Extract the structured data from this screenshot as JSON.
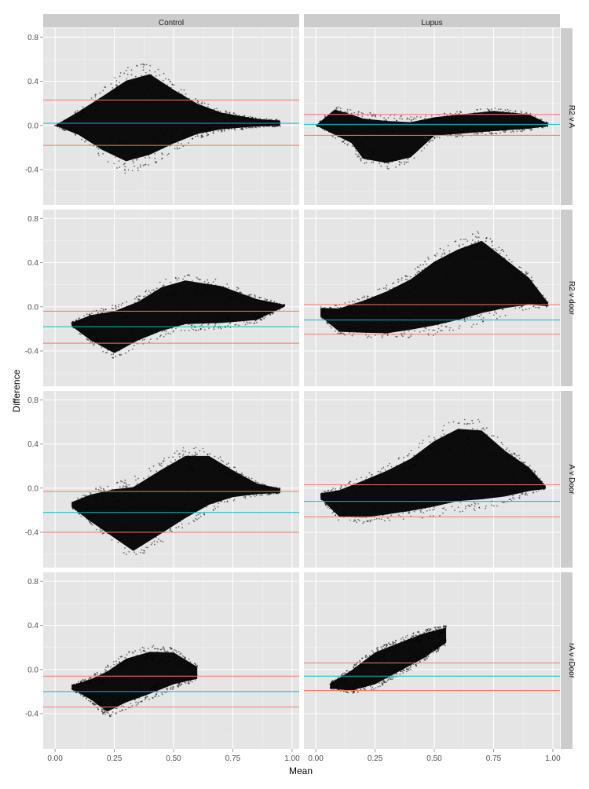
{
  "chart_data": {
    "type": "scatter",
    "xlabel": "Mean",
    "ylabel": "Difference",
    "facet_columns": [
      "Control",
      "Lupus"
    ],
    "facet_rows": [
      "R2 v A",
      "R2 v door",
      "A v Door",
      "rA v rDoor"
    ],
    "xlim": [
      -0.05,
      1.03
    ],
    "ylim": [
      -0.72,
      0.88
    ],
    "x_ticks": [
      0,
      0.25,
      0.5,
      0.75,
      1
    ],
    "x_tick_labels": [
      "0.00",
      "0.25",
      "0.50",
      "0.75",
      "1.00"
    ],
    "y_ticks": [
      -0.4,
      0,
      0.4,
      0.8
    ],
    "y_tick_labels": [
      "-0.4",
      "0.0",
      "0.4",
      "0.8"
    ],
    "colors": {
      "panel_bg": "#e5e5e5",
      "strip_bg": "#cccccc",
      "points": "#000000",
      "mean_line": "#00bfc4",
      "limit_lines": "#f8766d"
    },
    "grid": true,
    "legend": "none",
    "panels": [
      {
        "column": "Control",
        "row": "R2 v A",
        "mean_difference": 0.02,
        "lower_limit": -0.18,
        "upper_limit": 0.23,
        "cloud": [
          [
            0.0,
            0.0,
            0.0
          ],
          [
            0.1,
            0.16,
            -0.12
          ],
          [
            0.2,
            0.34,
            -0.3
          ],
          [
            0.3,
            0.52,
            -0.44
          ],
          [
            0.4,
            0.58,
            -0.38
          ],
          [
            0.5,
            0.4,
            -0.24
          ],
          [
            0.6,
            0.24,
            -0.12
          ],
          [
            0.7,
            0.14,
            -0.06
          ],
          [
            0.85,
            0.07,
            -0.02
          ],
          [
            0.95,
            0.05,
            -0.01
          ]
        ]
      },
      {
        "column": "Lupus",
        "row": "R2 v A",
        "mean_difference": 0.01,
        "lower_limit": -0.09,
        "upper_limit": 0.1,
        "cloud": [
          [
            0.0,
            0.0,
            0.0
          ],
          [
            0.08,
            0.18,
            -0.12
          ],
          [
            0.15,
            0.14,
            -0.2
          ],
          [
            0.2,
            0.12,
            -0.36
          ],
          [
            0.3,
            0.1,
            -0.4
          ],
          [
            0.4,
            0.08,
            -0.34
          ],
          [
            0.5,
            0.1,
            -0.12
          ],
          [
            0.75,
            0.16,
            -0.08
          ],
          [
            0.9,
            0.12,
            -0.05
          ],
          [
            0.98,
            0.02,
            -0.01
          ]
        ]
      },
      {
        "column": "Control",
        "row": "R2 v door",
        "mean_difference": -0.18,
        "lower_limit": -0.33,
        "upper_limit": -0.04,
        "cloud": [
          [
            0.07,
            -0.14,
            -0.18
          ],
          [
            0.15,
            -0.04,
            -0.34
          ],
          [
            0.25,
            0.02,
            -0.48
          ],
          [
            0.35,
            0.1,
            -0.36
          ],
          [
            0.45,
            0.24,
            -0.28
          ],
          [
            0.55,
            0.3,
            -0.22
          ],
          [
            0.7,
            0.24,
            -0.2
          ],
          [
            0.85,
            0.1,
            -0.15
          ],
          [
            0.97,
            0.02,
            0.0
          ]
        ]
      },
      {
        "column": "Lupus",
        "row": "R2 v door",
        "mean_difference": -0.12,
        "lower_limit": -0.25,
        "upper_limit": 0.02,
        "cloud": [
          [
            0.02,
            0.0,
            -0.1
          ],
          [
            0.1,
            0.02,
            -0.26
          ],
          [
            0.2,
            0.1,
            -0.28
          ],
          [
            0.3,
            0.2,
            -0.3
          ],
          [
            0.4,
            0.32,
            -0.28
          ],
          [
            0.5,
            0.5,
            -0.26
          ],
          [
            0.6,
            0.62,
            -0.22
          ],
          [
            0.7,
            0.7,
            -0.16
          ],
          [
            0.8,
            0.5,
            -0.08
          ],
          [
            0.9,
            0.3,
            -0.02
          ],
          [
            0.98,
            0.04,
            0.0
          ]
        ]
      },
      {
        "column": "Control",
        "row": "A v Door",
        "mean_difference": -0.22,
        "lower_limit": -0.4,
        "upper_limit": -0.03,
        "cloud": [
          [
            0.07,
            -0.12,
            -0.18
          ],
          [
            0.15,
            -0.02,
            -0.34
          ],
          [
            0.25,
            0.06,
            -0.52
          ],
          [
            0.33,
            0.1,
            -0.66
          ],
          [
            0.45,
            0.26,
            -0.5
          ],
          [
            0.55,
            0.38,
            -0.36
          ],
          [
            0.65,
            0.36,
            -0.22
          ],
          [
            0.75,
            0.2,
            -0.12
          ],
          [
            0.85,
            0.06,
            -0.07
          ],
          [
            0.95,
            0.0,
            -0.05
          ]
        ]
      },
      {
        "column": "Lupus",
        "row": "A v Door",
        "mean_difference": -0.12,
        "lower_limit": -0.26,
        "upper_limit": 0.03,
        "cloud": [
          [
            0.02,
            -0.04,
            -0.1
          ],
          [
            0.1,
            0.02,
            -0.3
          ],
          [
            0.2,
            0.12,
            -0.32
          ],
          [
            0.3,
            0.22,
            -0.3
          ],
          [
            0.4,
            0.34,
            -0.28
          ],
          [
            0.5,
            0.52,
            -0.26
          ],
          [
            0.6,
            0.64,
            -0.22
          ],
          [
            0.7,
            0.62,
            -0.2
          ],
          [
            0.8,
            0.4,
            -0.14
          ],
          [
            0.9,
            0.22,
            -0.06
          ],
          [
            0.97,
            0.02,
            -0.01
          ]
        ]
      },
      {
        "column": "Control",
        "row": "rA v rDoor",
        "mean_difference": -0.2,
        "lower_limit": -0.34,
        "upper_limit": -0.06,
        "cloud": [
          [
            0.07,
            -0.14,
            -0.18
          ],
          [
            0.15,
            -0.06,
            -0.3
          ],
          [
            0.22,
            0.04,
            -0.44
          ],
          [
            0.3,
            0.16,
            -0.36
          ],
          [
            0.4,
            0.22,
            -0.28
          ],
          [
            0.5,
            0.2,
            -0.18
          ],
          [
            0.6,
            0.04,
            -0.1
          ]
        ]
      },
      {
        "column": "Lupus",
        "row": "rA v rDoor",
        "mean_difference": -0.06,
        "lower_limit": -0.19,
        "upper_limit": 0.06,
        "cloud": [
          [
            0.06,
            -0.12,
            -0.18
          ],
          [
            0.15,
            0.02,
            -0.22
          ],
          [
            0.25,
            0.2,
            -0.18
          ],
          [
            0.35,
            0.28,
            -0.06
          ],
          [
            0.45,
            0.36,
            0.06
          ],
          [
            0.55,
            0.4,
            0.22
          ]
        ]
      }
    ]
  }
}
